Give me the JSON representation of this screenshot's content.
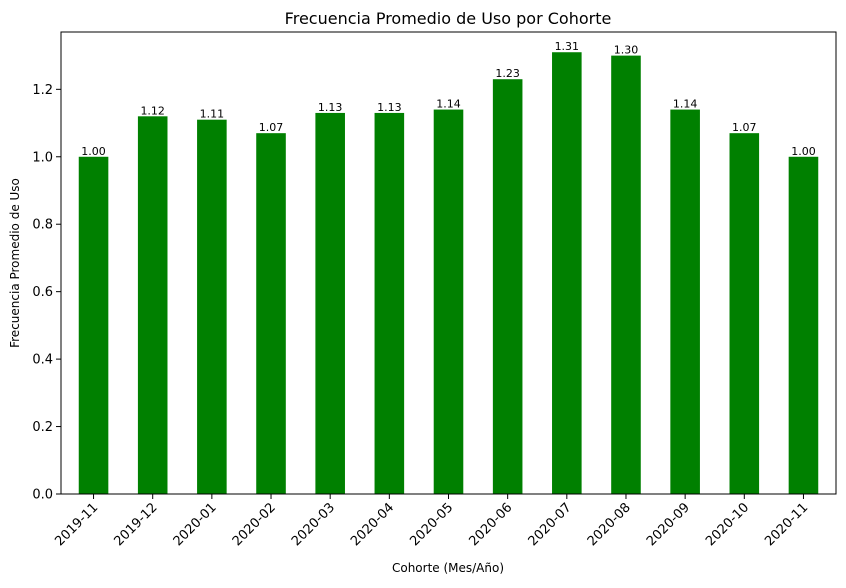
{
  "chart_data": {
    "type": "bar",
    "title": "Frecuencia Promedio de Uso por Cohorte",
    "xlabel": "Cohorte (Mes/Año)",
    "ylabel": "Frecuencia Promedio de Uso",
    "categories": [
      "2019-11",
      "2019-12",
      "2020-01",
      "2020-02",
      "2020-03",
      "2020-04",
      "2020-05",
      "2020-06",
      "2020-07",
      "2020-08",
      "2020-09",
      "2020-10",
      "2020-11"
    ],
    "values": [
      1.0,
      1.12,
      1.11,
      1.07,
      1.13,
      1.13,
      1.14,
      1.23,
      1.31,
      1.3,
      1.14,
      1.07,
      1.0
    ],
    "data_labels": [
      "1.00",
      "1.12",
      "1.11",
      "1.07",
      "1.13",
      "1.13",
      "1.14",
      "1.23",
      "1.31",
      "1.30",
      "1.14",
      "1.07",
      "1.00"
    ],
    "yticks": [
      "0.0",
      "0.2",
      "0.4",
      "0.6",
      "0.8",
      "1.0",
      "1.2"
    ],
    "ylim": [
      0,
      1.37
    ],
    "bar_color": "#008000",
    "grid": false,
    "legend": "none"
  }
}
